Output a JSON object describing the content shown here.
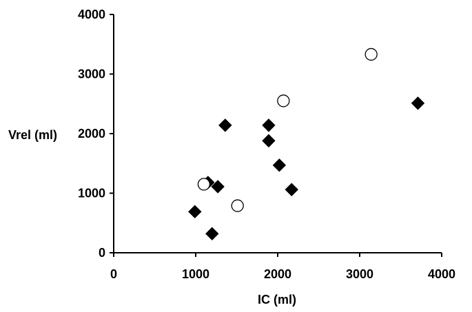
{
  "chart_data": {
    "type": "scatter",
    "xlabel": "IC (ml)",
    "ylabel": "Vrel (ml)",
    "xlim": [
      0,
      4000
    ],
    "ylim": [
      0,
      4000
    ],
    "xticks": [
      0,
      1000,
      2000,
      3000,
      4000
    ],
    "yticks": [
      0,
      1000,
      2000,
      3000,
      4000
    ],
    "grid": false,
    "series": [
      {
        "marker": "filled-diamond",
        "color": "#000000",
        "points": [
          {
            "x": 990,
            "y": 690
          },
          {
            "x": 1150,
            "y": 1180
          },
          {
            "x": 1200,
            "y": 320
          },
          {
            "x": 1270,
            "y": 1110
          },
          {
            "x": 1360,
            "y": 2140
          },
          {
            "x": 1890,
            "y": 2140
          },
          {
            "x": 1890,
            "y": 1880
          },
          {
            "x": 2020,
            "y": 1470
          },
          {
            "x": 2170,
            "y": 1060
          },
          {
            "x": 3710,
            "y": 2510
          }
        ]
      },
      {
        "marker": "open-circle",
        "color": "#000000",
        "points": [
          {
            "x": 1100,
            "y": 1150
          },
          {
            "x": 1510,
            "y": 790
          },
          {
            "x": 2070,
            "y": 2550
          },
          {
            "x": 3140,
            "y": 3330
          }
        ]
      }
    ]
  }
}
